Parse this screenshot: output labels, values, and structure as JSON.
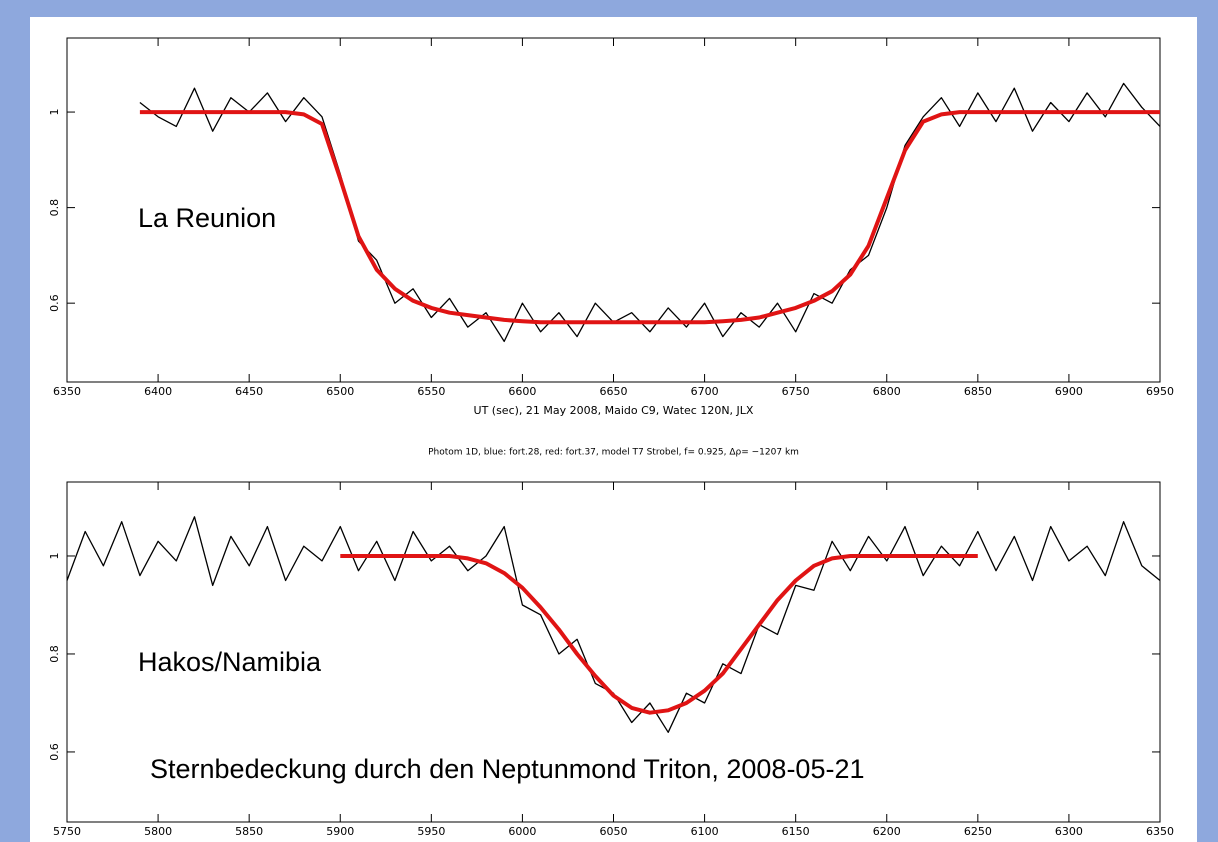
{
  "chart_data": [
    {
      "type": "line",
      "xlabel": "UT (sec), 21 May 2008, Maido C9, Watec 120N, JLX",
      "annotations": [
        "La Reunion"
      ],
      "x": [
        6390,
        6400,
        6410,
        6420,
        6430,
        6440,
        6450,
        6460,
        6470,
        6480,
        6490,
        6500,
        6510,
        6520,
        6530,
        6540,
        6550,
        6560,
        6570,
        6580,
        6590,
        6600,
        6610,
        6620,
        6630,
        6640,
        6650,
        6660,
        6670,
        6680,
        6690,
        6700,
        6710,
        6720,
        6730,
        6740,
        6750,
        6760,
        6770,
        6780,
        6790,
        6800,
        6810,
        6820,
        6830,
        6840,
        6850,
        6860,
        6870,
        6880,
        6890,
        6900,
        6910,
        6920,
        6930,
        6940,
        6950
      ],
      "series": [
        {
          "color": "#000000",
          "width": 1.3,
          "values": [
            1.02,
            0.99,
            0.97,
            1.05,
            0.96,
            1.03,
            1.0,
            1.04,
            0.98,
            1.03,
            0.99,
            0.87,
            0.73,
            0.69,
            0.6,
            0.63,
            0.57,
            0.61,
            0.55,
            0.58,
            0.52,
            0.6,
            0.54,
            0.58,
            0.53,
            0.6,
            0.56,
            0.58,
            0.54,
            0.59,
            0.55,
            0.6,
            0.53,
            0.58,
            0.55,
            0.6,
            0.54,
            0.62,
            0.6,
            0.67,
            0.7,
            0.8,
            0.93,
            0.99,
            1.03,
            0.97,
            1.04,
            0.98,
            1.05,
            0.96,
            1.02,
            0.98,
            1.04,
            0.99,
            1.06,
            1.01,
            0.97
          ]
        },
        {
          "color": "#e01414",
          "width": 4,
          "values": [
            1,
            1,
            1,
            1,
            1,
            1,
            1,
            1,
            1,
            0.995,
            0.975,
            0.86,
            0.74,
            0.67,
            0.63,
            0.605,
            0.59,
            0.58,
            0.575,
            0.57,
            0.565,
            0.562,
            0.56,
            0.56,
            0.56,
            0.56,
            0.56,
            0.56,
            0.56,
            0.56,
            0.56,
            0.56,
            0.562,
            0.565,
            0.57,
            0.58,
            0.59,
            0.605,
            0.625,
            0.66,
            0.72,
            0.82,
            0.92,
            0.98,
            0.995,
            1,
            1,
            1,
            1,
            1,
            1,
            1,
            1,
            1,
            1,
            1,
            1
          ]
        }
      ],
      "xlim": [
        6350,
        6950
      ],
      "xticks": [
        6350,
        6400,
        6450,
        6500,
        6550,
        6600,
        6650,
        6700,
        6750,
        6800,
        6850,
        6900,
        6950
      ],
      "ylim": [
        0.435,
        1.155
      ],
      "yticks": [
        0.6,
        0.8,
        1
      ]
    },
    {
      "type": "line",
      "title": "Photom 1D, blue: fort.28, red: fort.37, model T7 Strobel, f= 0.925, Δρ= −1207 km",
      "annotations": [
        "Hakos/Namibia",
        "Sternbedeckung durch den Neptunmond Triton, 2008-05-21"
      ],
      "x": [
        5750,
        5760,
        5770,
        5780,
        5790,
        5800,
        5810,
        5820,
        5830,
        5840,
        5850,
        5860,
        5870,
        5880,
        5890,
        5900,
        5910,
        5920,
        5930,
        5940,
        5950,
        5960,
        5970,
        5980,
        5990,
        6000,
        6010,
        6020,
        6030,
        6040,
        6050,
        6060,
        6070,
        6080,
        6090,
        6100,
        6110,
        6120,
        6130,
        6140,
        6150,
        6160,
        6170,
        6180,
        6190,
        6200,
        6210,
        6220,
        6230,
        6240,
        6250,
        6260,
        6270,
        6280,
        6290,
        6300,
        6310,
        6320,
        6330,
        6340,
        6350
      ],
      "series": [
        {
          "color": "#000000",
          "width": 1.3,
          "values": [
            0.95,
            1.05,
            0.98,
            1.07,
            0.96,
            1.03,
            0.99,
            1.08,
            0.94,
            1.04,
            0.98,
            1.06,
            0.95,
            1.02,
            0.99,
            1.06,
            0.97,
            1.03,
            0.95,
            1.05,
            0.99,
            1.02,
            0.97,
            1.0,
            1.06,
            0.9,
            0.88,
            0.8,
            0.83,
            0.74,
            0.72,
            0.66,
            0.7,
            0.64,
            0.72,
            0.7,
            0.78,
            0.76,
            0.86,
            0.84,
            0.94,
            0.93,
            1.03,
            0.97,
            1.04,
            0.99,
            1.06,
            0.96,
            1.02,
            0.98,
            1.05,
            0.97,
            1.04,
            0.95,
            1.06,
            0.99,
            1.02,
            0.96,
            1.07,
            0.98,
            0.95
          ]
        },
        {
          "color": "#e01414",
          "width": 4,
          "values": [
            null,
            null,
            null,
            null,
            null,
            null,
            null,
            null,
            null,
            null,
            null,
            null,
            null,
            null,
            null,
            1,
            1,
            1,
            1,
            1,
            1,
            1,
            0.995,
            0.985,
            0.965,
            0.935,
            0.895,
            0.85,
            0.8,
            0.755,
            0.715,
            0.69,
            0.68,
            0.685,
            0.7,
            0.725,
            0.76,
            0.81,
            0.86,
            0.91,
            0.95,
            0.98,
            0.995,
            1,
            1,
            1,
            1,
            1,
            1,
            1,
            1,
            null,
            null,
            null,
            null,
            null,
            null,
            null,
            null,
            null,
            null
          ]
        }
      ],
      "xlim": [
        5750,
        6350
      ],
      "xticks": [
        5750,
        5800,
        5850,
        5900,
        5950,
        6000,
        6050,
        6100,
        6150,
        6200,
        6250,
        6300,
        6350
      ],
      "ylim": [
        0.457,
        1.151
      ],
      "yticks": [
        0.6,
        0.8,
        1
      ]
    }
  ]
}
